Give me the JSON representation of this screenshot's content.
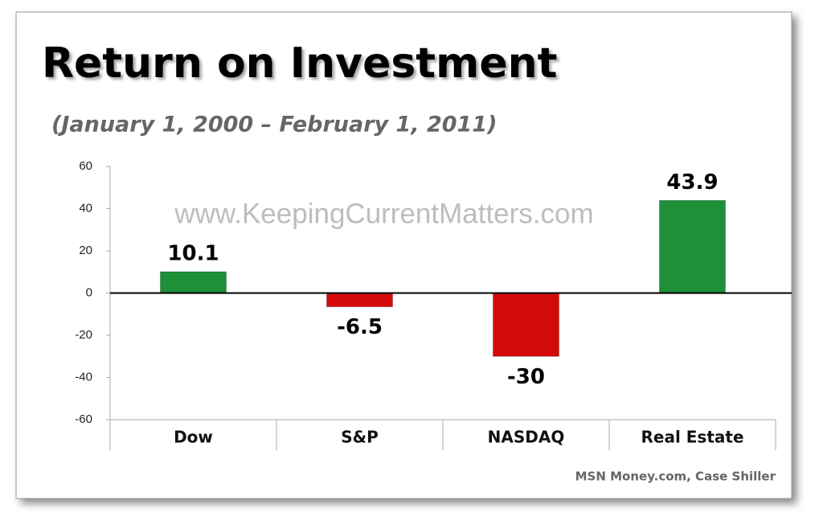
{
  "chart_data": {
    "type": "bar",
    "title": "Return on Investment",
    "subtitle": "(January 1, 2000 – February 1, 2011)",
    "watermark": "www.KeepingCurrentMatters.com",
    "source": "MSN Money.com, Case Shiller",
    "categories": [
      "Dow",
      "S&P",
      "NASDAQ",
      "Real Estate"
    ],
    "values": [
      10.1,
      -6.5,
      -30,
      43.9
    ],
    "colors": [
      "#1f8f3a",
      "#d40a0a",
      "#d40a0a",
      "#1f8f3a"
    ],
    "ylim": [
      -60,
      60
    ],
    "yticks": [
      -60,
      -40,
      -20,
      0,
      20,
      40,
      60
    ],
    "grid": false
  }
}
